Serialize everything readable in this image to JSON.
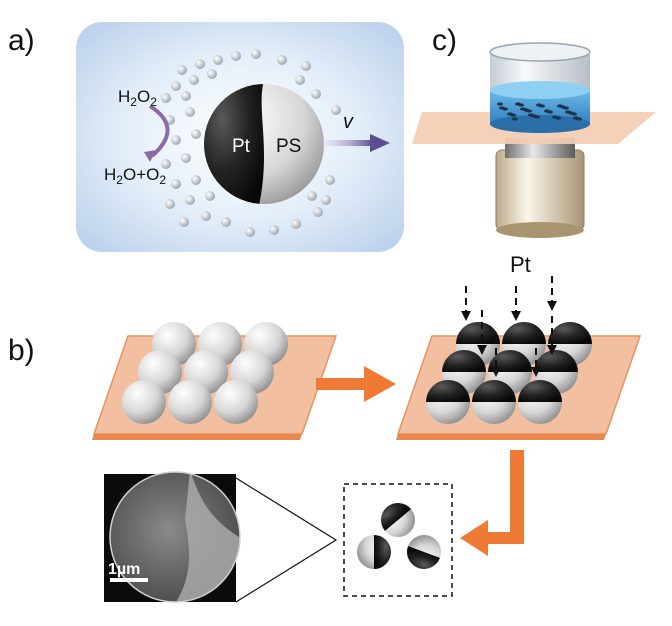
{
  "panels": {
    "a": {
      "label": "a)"
    },
    "b": {
      "label": "b)"
    },
    "c": {
      "label": "c)"
    }
  },
  "janus": {
    "metal_label": "Pt",
    "core_label": "PS",
    "velocity_label": "v",
    "reactant_label": "H2O2",
    "products_label": "H2O+O2"
  },
  "deposition": {
    "source_label": "Pt"
  },
  "sem": {
    "scalebar_label": "1µm"
  },
  "colors": {
    "panel_bg": "#d8e6f5",
    "substrate": "#f2c1a0",
    "arrow_orange": "#ef7a35",
    "platinum": "#1c1c1c",
    "liquid": "#4a9fd6",
    "velocity_arrow": "#6a5b9a"
  }
}
